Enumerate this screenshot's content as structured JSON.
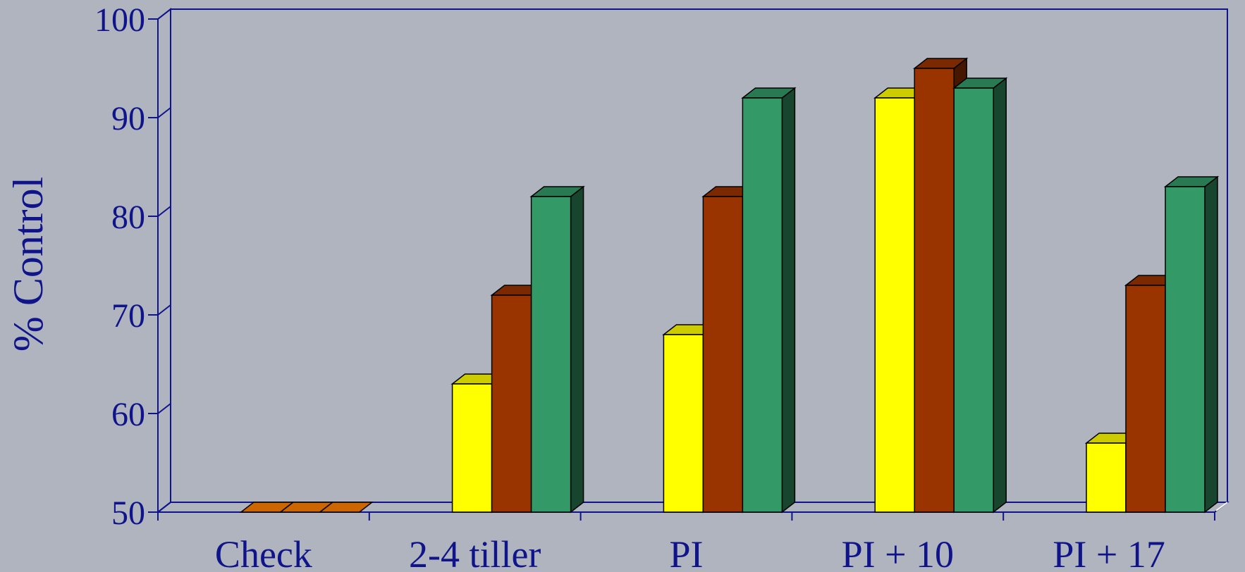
{
  "chart_data": {
    "type": "bar",
    "title": "",
    "xlabel": "",
    "ylabel": "% Control",
    "ylim": [
      50,
      100
    ],
    "yticks": [
      50,
      60,
      70,
      80,
      90,
      100
    ],
    "categories": [
      "Check",
      "2-4 tiller",
      "PI",
      "PI + 10",
      "PI + 17"
    ],
    "series": [
      {
        "values": [
          50,
          63,
          68,
          92,
          57
        ],
        "color": "#ffff00"
      },
      {
        "values": [
          50,
          72,
          82,
          95,
          73
        ],
        "color": "#993300"
      },
      {
        "values": [
          50,
          82,
          92,
          93,
          83
        ],
        "color": "#339966"
      }
    ],
    "grid": false,
    "legend": "none",
    "frame_color": "#10148a",
    "background": "#b0b4be"
  }
}
